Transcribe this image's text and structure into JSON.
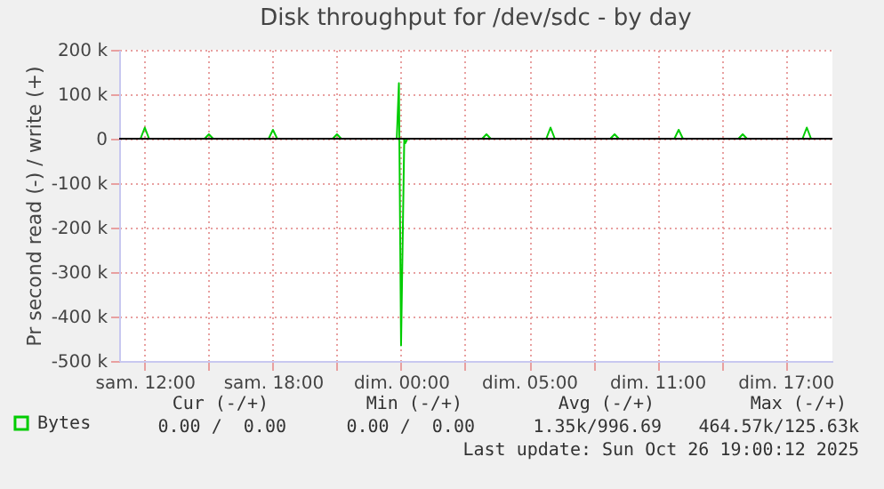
{
  "chart_data": {
    "type": "line",
    "title": "Disk throughput for /dev/sdc - by day",
    "ylabel": "Pr second read (-) / write (+)",
    "xlim": [
      "2025-10-25T08:48",
      "2025-10-26T18:12"
    ],
    "xticks": [
      {
        "value": "2025-10-25T10:00",
        "label": "sam. 12:00"
      },
      {
        "value": "2025-10-25T13:00",
        "label": null
      },
      {
        "value": "2025-10-25T16:00",
        "label": "sam. 18:00"
      },
      {
        "value": "2025-10-25T19:00",
        "label": null
      },
      {
        "value": "2025-10-25T22:00",
        "label": "dim. 00:00"
      },
      {
        "value": "2025-10-26T01:00",
        "label": null
      },
      {
        "value": "2025-10-26T04:00",
        "label": "dim. 05:00"
      },
      {
        "value": "2025-10-26T07:00",
        "label": null
      },
      {
        "value": "2025-10-26T10:00",
        "label": "dim. 11:00"
      },
      {
        "value": "2025-10-26T13:00",
        "label": null
      },
      {
        "value": "2025-10-26T16:00",
        "label": "dim. 17:00"
      }
    ],
    "ylim": [
      -500000,
      200000
    ],
    "yticks": [
      {
        "value": -500000,
        "label": "-500 k"
      },
      {
        "value": -400000,
        "label": "-400 k"
      },
      {
        "value": -300000,
        "label": "-300 k"
      },
      {
        "value": -200000,
        "label": "-200 k"
      },
      {
        "value": -100000,
        "label": "-100 k"
      },
      0,
      {
        "value": 100000,
        "label": "100 k"
      },
      {
        "value": 200000,
        "label": "200 k"
      }
    ],
    "x": [
      "2025-10-25T08:48",
      "2025-10-25T09:48",
      "2025-10-25T10:00",
      "2025-10-25T10:12",
      "2025-10-25T12:48",
      "2025-10-25T13:00",
      "2025-10-25T13:12",
      "2025-10-25T15:48",
      "2025-10-25T16:00",
      "2025-10-25T16:12",
      "2025-10-25T18:48",
      "2025-10-25T19:00",
      "2025-10-25T19:12",
      "2025-10-25T21:48",
      "2025-10-25T21:54",
      "2025-10-25T22:00",
      "2025-10-25T22:09",
      "2025-10-25T22:12",
      "2025-10-25T22:18",
      "2025-10-26T01:48",
      "2025-10-26T02:00",
      "2025-10-26T02:12",
      "2025-10-26T04:48",
      "2025-10-26T05:00",
      "2025-10-26T05:12",
      "2025-10-26T07:48",
      "2025-10-26T08:00",
      "2025-10-26T08:12",
      "2025-10-26T10:48",
      "2025-10-26T11:00",
      "2025-10-26T11:12",
      "2025-10-26T13:48",
      "2025-10-26T14:00",
      "2025-10-26T14:12",
      "2025-10-26T16:48",
      "2025-10-26T17:00",
      "2025-10-26T17:12",
      "2025-10-26T18:12"
    ],
    "series": [
      {
        "name": "Bytes",
        "color": "#00cc00",
        "values": [
          0,
          0,
          25000,
          0,
          0,
          10000,
          0,
          0,
          20000,
          0,
          0,
          10000,
          0,
          0,
          125000,
          -465000,
          0,
          -10000,
          0,
          0,
          10000,
          0,
          0,
          25000,
          0,
          0,
          10000,
          0,
          0,
          20000,
          0,
          0,
          10000,
          0,
          0,
          25000,
          0,
          0
        ]
      }
    ],
    "ref_lines": [
      {
        "axis": "y",
        "value": 0,
        "color": "#000000"
      }
    ],
    "grid": true,
    "legend": "bottom left",
    "annotations": [
      "Cur (-/+)",
      "Min (-/+)",
      "Avg (-/+)",
      "Max (-/+)",
      "0.00 /  0.00",
      "0.00 /  0.00",
      "1.35k/996.69",
      "464.57k/125.63k",
      "Last update: Sun Oct 26 19:00:12 2025"
    ]
  }
}
